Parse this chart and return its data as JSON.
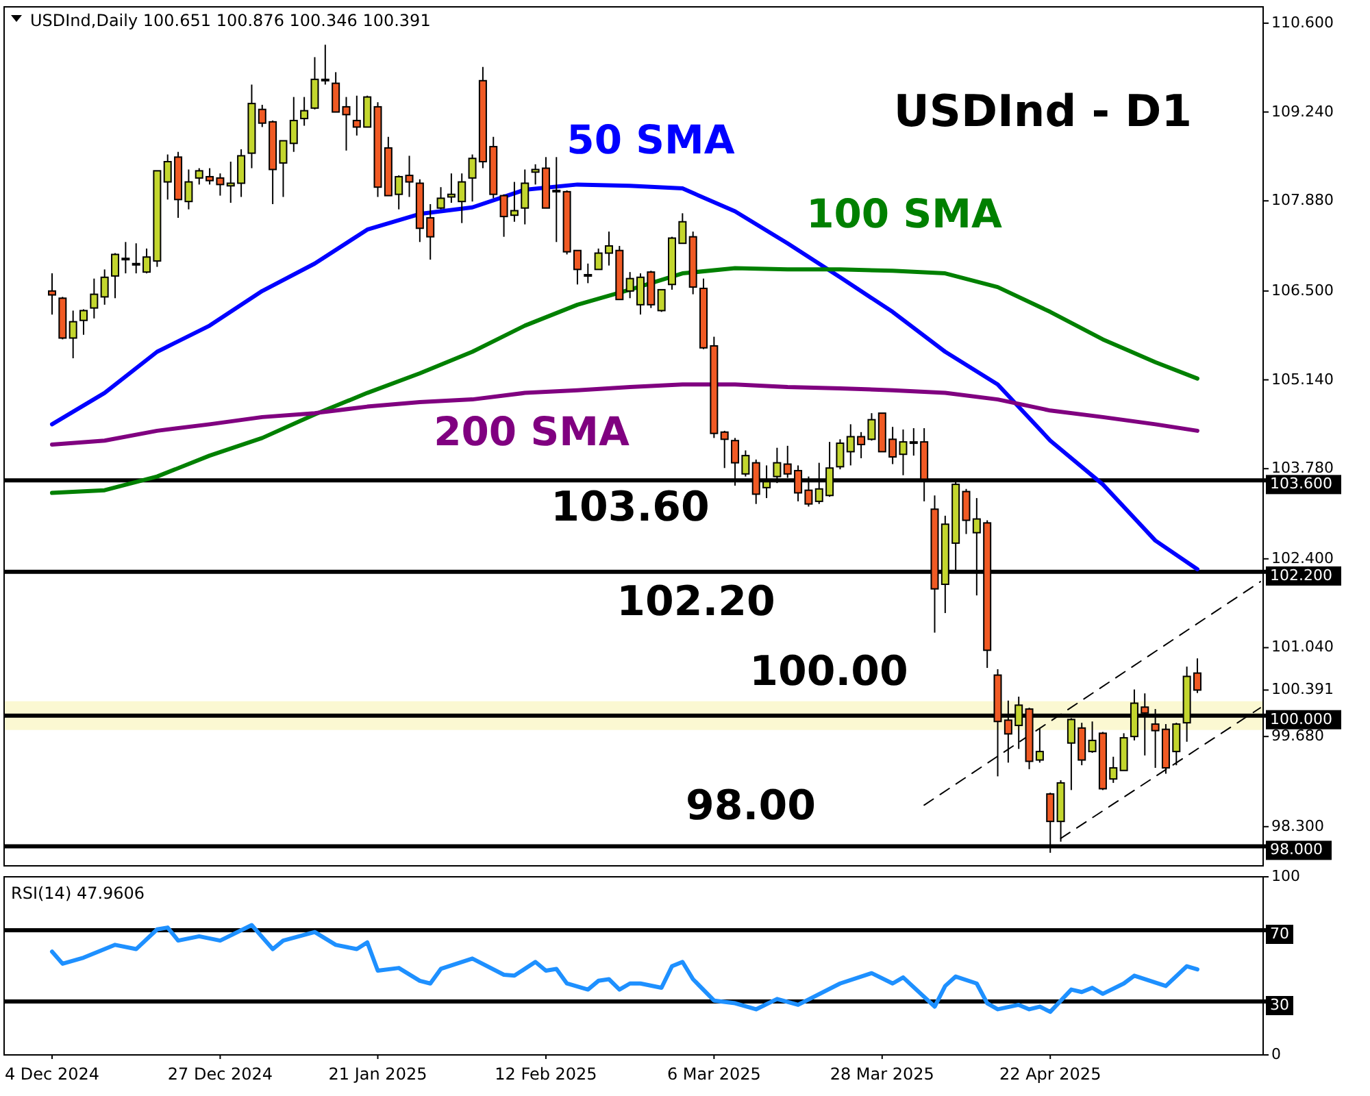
{
  "chart_data": [
    {
      "type": "candlestick",
      "title": "USDInd - D1",
      "subtitle": "USDInd,Daily 100.651 100.876 100.346 100.391",
      "tick_labels": "y",
      "categories": [
        null,
        null,
        null,
        null,
        null,
        null,
        null,
        null,
        null,
        null,
        null,
        null,
        null,
        null,
        null,
        null,
        null,
        null,
        null,
        null,
        null,
        null,
        null,
        null,
        null,
        null,
        null,
        null,
        null,
        null,
        null,
        null,
        null,
        null,
        null,
        null,
        null,
        null,
        null,
        null,
        null,
        null,
        null,
        null,
        null,
        null,
        null,
        null,
        null,
        null,
        null,
        null,
        null,
        null,
        null,
        null,
        null,
        null,
        null,
        null,
        null,
        null,
        null,
        null,
        null,
        null,
        null,
        null,
        null,
        null,
        null,
        null,
        null,
        null,
        null,
        null,
        null,
        null,
        null,
        null,
        null,
        null,
        null,
        null,
        null,
        null,
        null,
        null,
        null,
        null,
        null,
        null,
        null,
        null,
        null,
        null,
        null,
        null,
        null,
        null,
        null,
        null,
        null,
        null,
        null,
        null,
        null,
        null,
        null,
        null,
        null,
        null,
        null,
        null,
        null,
        null
      ],
      "ohlc": [
        [
          106.5,
          106.77,
          106.14,
          106.44
        ],
        [
          106.39,
          106.41,
          105.76,
          105.78
        ],
        [
          105.78,
          106.2,
          105.47,
          106.03
        ],
        [
          106.05,
          106.22,
          105.83,
          106.2
        ],
        [
          106.24,
          106.69,
          106.08,
          106.45
        ],
        [
          106.41,
          106.83,
          106.29,
          106.71
        ],
        [
          106.73,
          107.08,
          106.39,
          107.06
        ],
        [
          107.0,
          107.25,
          106.77,
          107.0
        ],
        [
          106.92,
          107.23,
          106.77,
          106.92
        ],
        [
          106.79,
          107.15,
          106.77,
          107.02
        ],
        [
          106.96,
          108.34,
          106.87,
          108.34
        ],
        [
          108.17,
          108.59,
          107.9,
          108.48
        ],
        [
          108.55,
          108.63,
          107.62,
          107.9
        ],
        [
          107.87,
          108.36,
          107.75,
          108.17
        ],
        [
          108.23,
          108.38,
          108.13,
          108.34
        ],
        [
          108.25,
          108.38,
          108.13,
          108.19
        ],
        [
          108.23,
          108.3,
          107.96,
          108.13
        ],
        [
          108.11,
          108.48,
          107.85,
          108.15
        ],
        [
          108.15,
          108.67,
          107.94,
          108.57
        ],
        [
          108.61,
          109.66,
          108.38,
          109.37
        ],
        [
          109.28,
          109.35,
          109.01,
          109.07
        ],
        [
          109.09,
          109.11,
          107.83,
          108.36
        ],
        [
          108.46,
          108.8,
          107.94,
          108.8
        ],
        [
          108.76,
          109.47,
          108.63,
          109.11
        ],
        [
          109.14,
          109.47,
          109.03,
          109.26
        ],
        [
          109.3,
          110.08,
          109.28,
          109.74
        ],
        [
          109.74,
          110.27,
          109.66,
          109.74
        ],
        [
          109.68,
          109.85,
          109.24,
          109.24
        ],
        [
          109.32,
          109.47,
          108.65,
          109.2
        ],
        [
          109.11,
          109.49,
          108.88,
          109.01
        ],
        [
          109.01,
          109.49,
          109.01,
          109.47
        ],
        [
          109.32,
          109.39,
          107.94,
          108.09
        ],
        [
          108.69,
          108.86,
          107.96,
          107.96
        ],
        [
          107.98,
          108.27,
          107.75,
          108.25
        ],
        [
          108.27,
          108.57,
          107.94,
          108.17
        ],
        [
          108.15,
          108.21,
          107.25,
          107.46
        ],
        [
          107.62,
          107.83,
          106.98,
          107.33
        ],
        [
          107.77,
          108.09,
          107.75,
          107.92
        ],
        [
          107.94,
          108.3,
          107.85,
          107.98
        ],
        [
          107.87,
          108.3,
          107.54,
          108.17
        ],
        [
          108.23,
          108.59,
          107.87,
          108.53
        ],
        [
          109.72,
          109.93,
          108.38,
          108.48
        ],
        [
          108.71,
          108.86,
          107.92,
          107.98
        ],
        [
          107.96,
          107.98,
          107.33,
          107.64
        ],
        [
          107.66,
          108.17,
          107.56,
          107.73
        ],
        [
          107.77,
          108.36,
          107.52,
          108.15
        ],
        [
          108.32,
          108.44,
          108.13,
          108.36
        ],
        [
          108.38,
          108.55,
          107.77,
          107.77
        ],
        [
          108.04,
          108.55,
          107.25,
          108.04
        ],
        [
          108.02,
          108.04,
          107.06,
          107.1
        ],
        [
          107.12,
          107.12,
          106.6,
          106.83
        ],
        [
          106.75,
          106.92,
          106.62,
          106.75
        ],
        [
          106.83,
          107.15,
          106.83,
          107.08
        ],
        [
          107.08,
          107.41,
          106.89,
          107.19
        ],
        [
          107.12,
          107.19,
          106.37,
          106.37
        ],
        [
          106.5,
          106.79,
          106.39,
          106.69
        ],
        [
          106.29,
          106.77,
          106.14,
          106.71
        ],
        [
          106.79,
          106.81,
          106.24,
          106.29
        ],
        [
          106.2,
          106.52,
          106.18,
          106.52
        ],
        [
          106.6,
          107.33,
          106.52,
          107.31
        ],
        [
          107.23,
          107.69,
          107.23,
          107.56
        ],
        [
          107.33,
          107.41,
          106.45,
          106.56
        ],
        [
          106.54,
          106.69,
          105.61,
          105.63
        ],
        [
          105.66,
          105.8,
          104.25,
          104.32
        ],
        [
          104.34,
          104.36,
          103.79,
          104.23
        ],
        [
          104.21,
          104.25,
          103.52,
          103.87
        ],
        [
          103.7,
          104.06,
          103.66,
          103.98
        ],
        [
          103.87,
          103.92,
          103.24,
          103.39
        ],
        [
          103.49,
          103.83,
          103.33,
          103.58
        ],
        [
          103.66,
          104.1,
          103.56,
          103.87
        ],
        [
          103.85,
          104.13,
          103.64,
          103.7
        ],
        [
          103.75,
          103.83,
          103.28,
          103.41
        ],
        [
          103.45,
          103.66,
          103.2,
          103.24
        ],
        [
          103.28,
          103.87,
          103.24,
          103.47
        ],
        [
          103.37,
          104.19,
          103.35,
          103.79
        ],
        [
          103.81,
          104.23,
          103.77,
          104.17
        ],
        [
          104.04,
          104.46,
          103.83,
          104.27
        ],
        [
          104.27,
          104.34,
          103.94,
          104.15
        ],
        [
          104.23,
          104.63,
          104.21,
          104.53
        ],
        [
          104.63,
          104.63,
          104.04,
          104.04
        ],
        [
          104.23,
          104.42,
          103.85,
          103.96
        ],
        [
          104.0,
          104.38,
          103.68,
          104.19
        ],
        [
          104.19,
          104.4,
          103.98,
          104.19
        ],
        [
          104.19,
          104.4,
          103.28,
          103.62
        ],
        [
          103.16,
          103.37,
          101.27,
          101.94
        ],
        [
          102.01,
          103.06,
          101.57,
          102.93
        ],
        [
          102.64,
          103.58,
          102.22,
          103.54
        ],
        [
          103.43,
          103.47,
          102.78,
          102.99
        ],
        [
          102.8,
          103.33,
          101.84,
          103.01
        ],
        [
          102.95,
          102.99,
          100.73,
          101.0
        ],
        [
          100.62,
          100.71,
          99.07,
          99.91
        ],
        [
          99.93,
          100.23,
          99.28,
          99.72
        ],
        [
          99.85,
          100.29,
          99.49,
          100.16
        ],
        [
          100.1,
          100.12,
          99.18,
          99.3
        ],
        [
          99.32,
          99.81,
          99.28,
          99.45
        ],
        [
          98.8,
          98.82,
          97.9,
          98.38
        ],
        [
          98.38,
          99.01,
          98.07,
          98.97
        ],
        [
          99.58,
          99.96,
          98.86,
          99.94
        ],
        [
          99.81,
          99.89,
          99.24,
          99.32
        ],
        [
          99.45,
          99.91,
          99.43,
          99.62
        ],
        [
          99.73,
          99.75,
          98.86,
          98.88
        ],
        [
          99.03,
          99.37,
          98.97,
          99.2
        ],
        [
          99.16,
          99.73,
          99.16,
          99.66
        ],
        [
          99.68,
          100.4,
          99.62,
          100.19
        ],
        [
          100.13,
          100.34,
          99.39,
          100.04
        ],
        [
          99.87,
          100.1,
          99.2,
          99.77
        ],
        [
          99.79,
          99.87,
          99.11,
          99.2
        ],
        [
          99.45,
          99.89,
          99.24,
          99.87
        ],
        [
          99.89,
          100.75,
          99.6,
          100.6
        ],
        [
          100.651,
          100.876,
          100.346,
          100.391
        ],
        null,
        null,
        null,
        null,
        null,
        null
      ],
      "colors": [
        "#f05a24",
        "#f05a24",
        "#c3d62e",
        "#c3d62e",
        "#c3d62e",
        "#c3d62e",
        "#c3d62e",
        "#c3d62e",
        "#c3d62e",
        "#c3d62e",
        "#c3d62e",
        "#c3d62e",
        "#f05a24",
        "#c3d62e",
        "#c3d62e",
        "#f05a24",
        "#f05a24",
        "#c3d62e",
        "#c3d62e",
        "#c3d62e",
        "#f05a24",
        "#f05a24",
        "#c3d62e",
        "#c3d62e",
        "#c3d62e",
        "#c3d62e",
        "#c3d62e",
        "#f05a24",
        "#f05a24",
        "#f05a24",
        "#c3d62e",
        "#f05a24",
        "#f05a24",
        "#c3d62e",
        "#f05a24",
        "#f05a24",
        "#f05a24",
        "#c3d62e",
        "#c3d62e",
        "#c3d62e",
        "#c3d62e",
        "#f05a24",
        "#f05a24",
        "#f05a24",
        "#c3d62e",
        "#c3d62e",
        "#c3d62e",
        "#f05a24",
        "#c3d62e",
        "#f05a24",
        "#f05a24",
        "#c3d62e",
        "#c3d62e",
        "#c3d62e",
        "#f05a24",
        "#c3d62e",
        "#c3d62e",
        "#f05a24",
        "#c3d62e",
        "#c3d62e",
        "#c3d62e",
        "#f05a24",
        "#f05a24",
        "#f05a24",
        "#f05a24",
        "#f05a24",
        "#c3d62e",
        "#f05a24",
        "#c3d62e",
        "#c3d62e",
        "#f05a24",
        "#f05a24",
        "#f05a24",
        "#c3d62e",
        "#c3d62e",
        "#c3d62e",
        "#c3d62e",
        "#f05a24",
        "#c3d62e",
        "#f05a24",
        "#f05a24",
        "#c3d62e",
        "#c3d62e",
        "#f05a24",
        "#f05a24",
        "#c3d62e",
        "#c3d62e",
        "#f05a24",
        "#c3d62e",
        "#f05a24",
        "#f05a24",
        "#f05a24",
        "#c3d62e",
        "#f05a24",
        "#c3d62e",
        "#f05a24",
        "#c3d62e",
        "#c3d62e",
        "#f05a24",
        "#c3d62e",
        "#f05a24",
        "#c3d62e",
        "#c3d62e",
        "#c3d62e",
        "#f05a24",
        "#f05a24",
        "#f05a24",
        "#c3d62e",
        "#c3d62e",
        "#f05a24",
        null,
        null,
        null,
        null,
        null,
        null
      ],
      "series": [
        {
          "type": "line",
          "name": "50 SMA",
          "color": "#0000ff",
          "values": [
            104.46,
            null,
            null,
            null,
            null,
            104.94,
            null,
            null,
            null,
            null,
            105.57,
            null,
            null,
            null,
            null,
            105.97,
            null,
            null,
            null,
            null,
            106.5,
            null,
            null,
            null,
            null,
            106.92,
            null,
            null,
            null,
            null,
            107.44,
            null,
            null,
            null,
            null,
            107.68,
            null,
            null,
            null,
            null,
            107.78,
            null,
            null,
            null,
            null,
            108.05,
            null,
            null,
            null,
            null,
            108.13,
            null,
            null,
            null,
            null,
            108.11,
            null,
            null,
            null,
            null,
            108.07,
            null,
            null,
            null,
            null,
            107.72,
            null,
            null,
            null,
            null,
            107.23,
            null,
            null,
            null,
            null,
            106.71,
            null,
            null,
            null,
            null,
            106.18,
            null,
            null,
            null,
            null,
            105.57,
            null,
            null,
            null,
            null,
            105.07,
            null,
            null,
            null,
            null,
            104.21,
            null,
            null,
            null,
            null,
            103.54,
            null,
            null,
            null,
            null,
            102.68,
            null,
            null,
            null,
            102.24,
            null,
            null,
            null,
            null,
            null,
            null
          ]
        },
        {
          "type": "line",
          "name": "100 SMA",
          "color": "#008000",
          "values": [
            103.41,
            null,
            null,
            null,
            null,
            103.45,
            null,
            null,
            null,
            null,
            103.66,
            null,
            null,
            null,
            null,
            103.98,
            null,
            null,
            null,
            null,
            104.25,
            null,
            null,
            null,
            null,
            104.61,
            null,
            null,
            null,
            null,
            104.94,
            null,
            null,
            null,
            null,
            105.24,
            null,
            null,
            null,
            null,
            105.57,
            null,
            null,
            null,
            null,
            105.97,
            null,
            null,
            null,
            null,
            106.29,
            null,
            null,
            null,
            null,
            106.52,
            null,
            null,
            null,
            null,
            106.77,
            null,
            null,
            null,
            null,
            106.85,
            null,
            null,
            null,
            null,
            106.83,
            null,
            null,
            null,
            null,
            106.83,
            null,
            null,
            null,
            null,
            106.81,
            null,
            null,
            null,
            null,
            106.77,
            null,
            null,
            null,
            null,
            106.56,
            null,
            null,
            null,
            null,
            106.18,
            null,
            null,
            null,
            null,
            105.76,
            null,
            null,
            null,
            null,
            105.41,
            null,
            null,
            null,
            105.16,
            null,
            null,
            null,
            null,
            null,
            null
          ]
        },
        {
          "type": "line",
          "name": "200 SMA",
          "color": "#800080",
          "values": [
            104.15,
            null,
            null,
            null,
            null,
            104.21,
            null,
            null,
            null,
            null,
            104.36,
            null,
            null,
            null,
            null,
            104.46,
            null,
            null,
            null,
            null,
            104.57,
            null,
            null,
            null,
            null,
            104.63,
            null,
            null,
            null,
            null,
            104.73,
            null,
            null,
            null,
            null,
            104.8,
            null,
            null,
            null,
            null,
            104.84,
            null,
            null,
            null,
            null,
            104.94,
            null,
            null,
            null,
            null,
            104.98,
            null,
            null,
            null,
            null,
            105.03,
            null,
            null,
            null,
            null,
            105.07,
            null,
            null,
            null,
            null,
            105.07,
            null,
            null,
            null,
            null,
            105.03,
            null,
            null,
            null,
            null,
            105.01,
            null,
            null,
            null,
            null,
            104.98,
            null,
            null,
            null,
            null,
            104.94,
            null,
            null,
            null,
            null,
            104.84,
            null,
            null,
            null,
            null,
            104.67,
            null,
            null,
            null,
            null,
            104.57,
            null,
            null,
            null,
            null,
            104.46,
            null,
            null,
            null,
            104.36,
            null,
            null,
            null,
            null,
            null,
            null
          ]
        },
        {
          "type": "line",
          "color": "#000000",
          "line_style": "dashed",
          "values": [
            null,
            null,
            null,
            null,
            null,
            null,
            null,
            null,
            null,
            null,
            null,
            null,
            null,
            null,
            null,
            null,
            null,
            null,
            null,
            null,
            null,
            null,
            null,
            null,
            null,
            null,
            null,
            null,
            null,
            null,
            null,
            null,
            null,
            null,
            null,
            null,
            null,
            null,
            null,
            null,
            null,
            null,
            null,
            null,
            null,
            null,
            null,
            null,
            null,
            null,
            null,
            null,
            null,
            null,
            null,
            null,
            null,
            null,
            null,
            null,
            null,
            null,
            null,
            null,
            null,
            null,
            null,
            null,
            null,
            null,
            null,
            null,
            null,
            null,
            null,
            null,
            null,
            null,
            null,
            null,
            null,
            null,
            null,
            98.63,
            null,
            null,
            null,
            null,
            null,
            null,
            null,
            null,
            null,
            null,
            null,
            null,
            null,
            null,
            null,
            null,
            null,
            null,
            null,
            null,
            null,
            null,
            null,
            null,
            null,
            null,
            null,
            null,
            null,
            null,
            null,
            102.05
          ]
        },
        {
          "type": "line",
          "color": "#000000",
          "line_style": "dashed",
          "values": [
            null,
            null,
            null,
            null,
            null,
            null,
            null,
            null,
            null,
            null,
            null,
            null,
            null,
            null,
            null,
            null,
            null,
            null,
            null,
            null,
            null,
            null,
            null,
            null,
            null,
            null,
            null,
            null,
            null,
            null,
            null,
            null,
            null,
            null,
            null,
            null,
            null,
            null,
            null,
            null,
            null,
            null,
            null,
            null,
            null,
            null,
            null,
            null,
            null,
            null,
            null,
            null,
            null,
            null,
            null,
            null,
            null,
            null,
            null,
            null,
            null,
            null,
            null,
            null,
            null,
            null,
            null,
            null,
            null,
            null,
            null,
            null,
            null,
            null,
            null,
            null,
            null,
            null,
            null,
            null,
            null,
            null,
            null,
            null,
            null,
            null,
            null,
            null,
            null,
            null,
            null,
            null,
            null,
            null,
            null,
            null,
            98.12,
            null,
            null,
            null,
            null,
            null,
            null,
            null,
            null,
            null,
            null,
            null,
            null,
            null,
            null,
            null,
            null,
            null,
            null,
            100.12
          ]
        }
      ],
      "ylim": [
        97.7,
        110.85
      ],
      "yticks": [
        {
          "value": 110.6,
          "label": "110.600"
        },
        {
          "value": 109.24,
          "label": "109.240"
        },
        {
          "value": 107.88,
          "label": "107.880"
        },
        {
          "value": 106.5,
          "label": "106.500"
        },
        {
          "value": 105.14,
          "label": "105.140"
        },
        {
          "value": 103.78,
          "label": "103.780"
        },
        {
          "value": 102.4,
          "label": "102.400"
        },
        {
          "value": 101.04,
          "label": "101.040"
        },
        {
          "value": 100.391,
          "label": "100.391"
        },
        {
          "value": 99.68,
          "label": "99.680"
        },
        {
          "value": 98.3,
          "label": "98.300"
        }
      ],
      "ref_lines": [
        {
          "axis": "y",
          "value": 103.6,
          "label": "103.600",
          "color": "#000000"
        },
        {
          "axis": "y",
          "value": 102.2,
          "label": "102.200",
          "color": "#000000"
        },
        {
          "axis": "y",
          "value": 100,
          "label": "100.000",
          "color": "#000000"
        },
        {
          "axis": "y",
          "value": 98,
          "label": "98.000",
          "color": "#000000"
        }
      ],
      "bands": [
        {
          "axis": "y",
          "from": 99.78,
          "to": 100.22,
          "color": "#fbf8d2"
        }
      ],
      "annotations": [
        "103.60",
        "102.20",
        "100.00",
        "98.00"
      ]
    },
    {
      "type": "line",
      "subtitle": "RSI(14) 47.9606",
      "categories": [
        "4 Dec 2024",
        null,
        null,
        null,
        null,
        null,
        null,
        null,
        null,
        null,
        null,
        null,
        null,
        null,
        null,
        null,
        "27 Dec 2024",
        null,
        null,
        null,
        null,
        null,
        null,
        null,
        null,
        null,
        null,
        null,
        null,
        null,
        null,
        "21 Jan 2025",
        null,
        null,
        null,
        null,
        null,
        null,
        null,
        null,
        null,
        null,
        null,
        null,
        null,
        null,
        null,
        "12 Feb 2025",
        null,
        null,
        null,
        null,
        null,
        null,
        null,
        null,
        null,
        null,
        null,
        null,
        null,
        null,
        null,
        "6 Mar 2025",
        null,
        null,
        null,
        null,
        null,
        null,
        null,
        null,
        null,
        null,
        null,
        null,
        null,
        null,
        null,
        "28 Mar 2025",
        null,
        null,
        null,
        null,
        null,
        null,
        null,
        null,
        null,
        null,
        null,
        null,
        null,
        null,
        null,
        "22 Apr 2025",
        null,
        null,
        null,
        null,
        null,
        null,
        null,
        null,
        null,
        null,
        null,
        null,
        null,
        null,
        null,
        null,
        null,
        null,
        null,
        null
      ],
      "series": [
        {
          "color": "#1e90ff",
          "values": [
            58.0,
            51.2,
            null,
            54.6,
            null,
            null,
            61.8,
            null,
            59.4,
            null,
            70.5,
            71.5,
            64.2,
            null,
            66.6,
            null,
            64.2,
            null,
            null,
            72.9,
            null,
            59.4,
            64.2,
            null,
            null,
            69.0,
            null,
            61.8,
            null,
            59.4,
            63.2,
            47.3,
            null,
            48.8,
            null,
            41.6,
            40.1,
            48.3,
            null,
            null,
            54.1,
            null,
            null,
            45.0,
            44.5,
            null,
            52.2,
            47.3,
            48.3,
            40.1,
            null,
            36.7,
            41.6,
            42.5,
            36.7,
            40.1,
            40.1,
            null,
            37.7,
            49.8,
            52.2,
            42.5,
            null,
            30.5,
            null,
            29.0,
            null,
            25.6,
            null,
            31.4,
            null,
            28.1,
            null,
            null,
            null,
            40.1,
            null,
            null,
            45.9,
            null,
            40.1,
            43.5,
            null,
            null,
            27.1,
            38.7,
            44.0,
            null,
            40.1,
            29.0,
            25.6,
            null,
            28.1,
            25.6,
            27.1,
            24.2,
            null,
            36.7,
            35.3,
            37.7,
            34.3,
            null,
            40.1,
            44.5,
            null,
            null,
            38.7,
            null,
            49.8,
            48.0,
            null,
            null,
            null,
            null,
            null,
            null
          ]
        }
      ],
      "ylim": [
        0,
        100
      ],
      "yticks": [
        0,
        100
      ],
      "ref_lines": [
        {
          "axis": "y",
          "value": 70,
          "label": "70",
          "color": "#000000"
        },
        {
          "axis": "y",
          "value": 30,
          "label": "30",
          "color": "#000000"
        }
      ]
    }
  ]
}
